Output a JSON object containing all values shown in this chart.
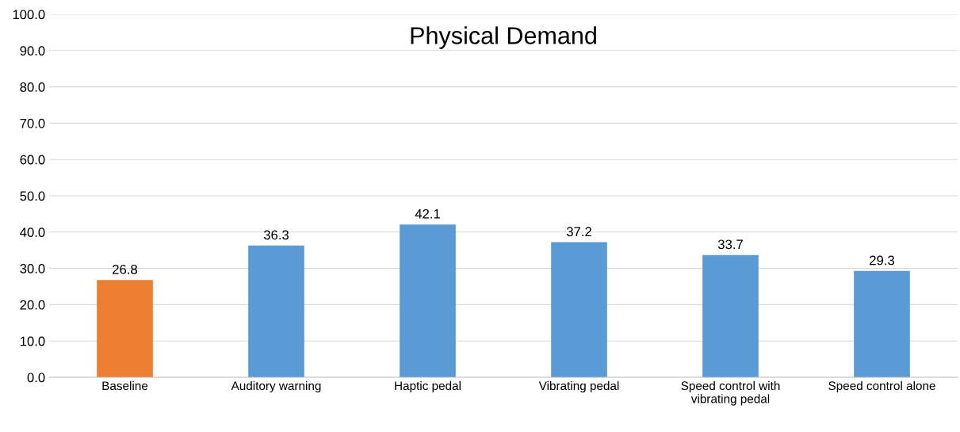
{
  "chart_data": {
    "type": "bar",
    "title": "Physical Demand",
    "categories": [
      "Baseline",
      "Auditory warning",
      "Haptic pedal",
      "Vibrating pedal",
      "Speed control with\nvibrating pedal",
      "Speed control alone"
    ],
    "values": [
      26.8,
      36.3,
      42.1,
      37.2,
      33.7,
      29.3
    ],
    "colors": [
      "#ed7d31",
      "#5b9bd5",
      "#5b9bd5",
      "#5b9bd5",
      "#5b9bd5",
      "#5b9bd5"
    ],
    "ylim": [
      0,
      100
    ],
    "yticks": [
      {
        "value": 0,
        "label": "0.0"
      },
      {
        "value": 10,
        "label": "10.0"
      },
      {
        "value": 20,
        "label": "20.0"
      },
      {
        "value": 30,
        "label": "30.0"
      },
      {
        "value": 40,
        "label": "40.0"
      },
      {
        "value": 50,
        "label": "50.0"
      },
      {
        "value": 60,
        "label": "60.0"
      },
      {
        "value": 70,
        "label": "70.0"
      },
      {
        "value": 80,
        "label": "80.0"
      },
      {
        "value": 90,
        "label": "90.0"
      },
      {
        "value": 100,
        "label": "100.0"
      }
    ],
    "data_labels": true,
    "grid": "y",
    "legend": false
  }
}
